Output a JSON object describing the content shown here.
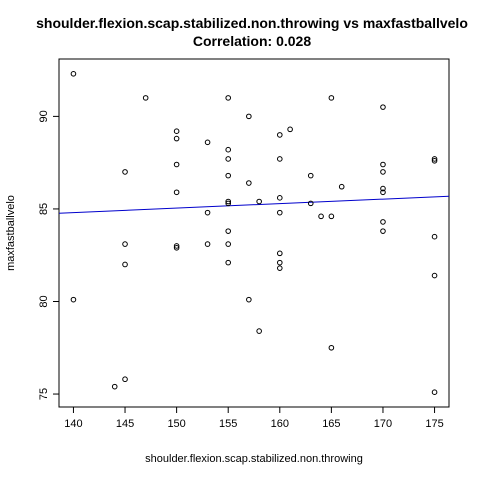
{
  "chart_data": {
    "type": "scatter",
    "title": "shoulder.flexion.scap.stabilized.non.throwing vs maxfastballvelo",
    "subtitle": "Correlation: 0.028",
    "xlabel": "shoulder.flexion.scap.stabilized.non.throwing",
    "ylabel": "maxfastballvelo",
    "xlim": [
      138.6,
      176.4
    ],
    "ylim": [
      74.3,
      93.1
    ],
    "x_ticks": [
      140,
      145,
      150,
      155,
      160,
      165,
      170,
      175
    ],
    "y_ticks": [
      75,
      80,
      85,
      90
    ],
    "grid": false,
    "legend": "none",
    "point_color": "#000000",
    "fit_line": {
      "color": "#0000cc",
      "intercept": 81.4,
      "slope": 0.0243
    },
    "points": [
      {
        "x": 140,
        "y": 92.3
      },
      {
        "x": 140,
        "y": 80.1
      },
      {
        "x": 144,
        "y": 75.4
      },
      {
        "x": 145,
        "y": 75.8
      },
      {
        "x": 145,
        "y": 87.0
      },
      {
        "x": 145,
        "y": 83.1
      },
      {
        "x": 145,
        "y": 82.0
      },
      {
        "x": 147,
        "y": 91.0
      },
      {
        "x": 150,
        "y": 89.2
      },
      {
        "x": 150,
        "y": 88.8
      },
      {
        "x": 150,
        "y": 87.4
      },
      {
        "x": 150,
        "y": 85.9
      },
      {
        "x": 150,
        "y": 83.0
      },
      {
        "x": 150,
        "y": 82.9
      },
      {
        "x": 153,
        "y": 88.6
      },
      {
        "x": 153,
        "y": 84.8
      },
      {
        "x": 153,
        "y": 83.1
      },
      {
        "x": 155,
        "y": 91.0
      },
      {
        "x": 155,
        "y": 88.2
      },
      {
        "x": 155,
        "y": 87.7
      },
      {
        "x": 155,
        "y": 86.8
      },
      {
        "x": 155,
        "y": 85.4
      },
      {
        "x": 155,
        "y": 85.3
      },
      {
        "x": 155,
        "y": 83.8
      },
      {
        "x": 155,
        "y": 83.1
      },
      {
        "x": 155,
        "y": 82.1
      },
      {
        "x": 157,
        "y": 90.0
      },
      {
        "x": 157,
        "y": 86.4
      },
      {
        "x": 157,
        "y": 80.1
      },
      {
        "x": 158,
        "y": 85.4
      },
      {
        "x": 158,
        "y": 78.4
      },
      {
        "x": 160,
        "y": 89.0
      },
      {
        "x": 160,
        "y": 87.7
      },
      {
        "x": 160,
        "y": 85.6
      },
      {
        "x": 160,
        "y": 84.8
      },
      {
        "x": 160,
        "y": 82.6
      },
      {
        "x": 160,
        "y": 82.1
      },
      {
        "x": 160,
        "y": 81.8
      },
      {
        "x": 161,
        "y": 89.3
      },
      {
        "x": 163,
        "y": 86.8
      },
      {
        "x": 163,
        "y": 85.3
      },
      {
        "x": 164,
        "y": 84.6
      },
      {
        "x": 165,
        "y": 91.0
      },
      {
        "x": 165,
        "y": 84.6
      },
      {
        "x": 165,
        "y": 77.5
      },
      {
        "x": 166,
        "y": 86.2
      },
      {
        "x": 170,
        "y": 90.5
      },
      {
        "x": 170,
        "y": 87.4
      },
      {
        "x": 170,
        "y": 87.0
      },
      {
        "x": 170,
        "y": 86.1
      },
      {
        "x": 170,
        "y": 85.9
      },
      {
        "x": 170,
        "y": 84.3
      },
      {
        "x": 170,
        "y": 83.8
      },
      {
        "x": 175,
        "y": 87.7
      },
      {
        "x": 175,
        "y": 87.6
      },
      {
        "x": 175,
        "y": 83.5
      },
      {
        "x": 175,
        "y": 81.4
      },
      {
        "x": 175,
        "y": 75.1
      }
    ]
  }
}
